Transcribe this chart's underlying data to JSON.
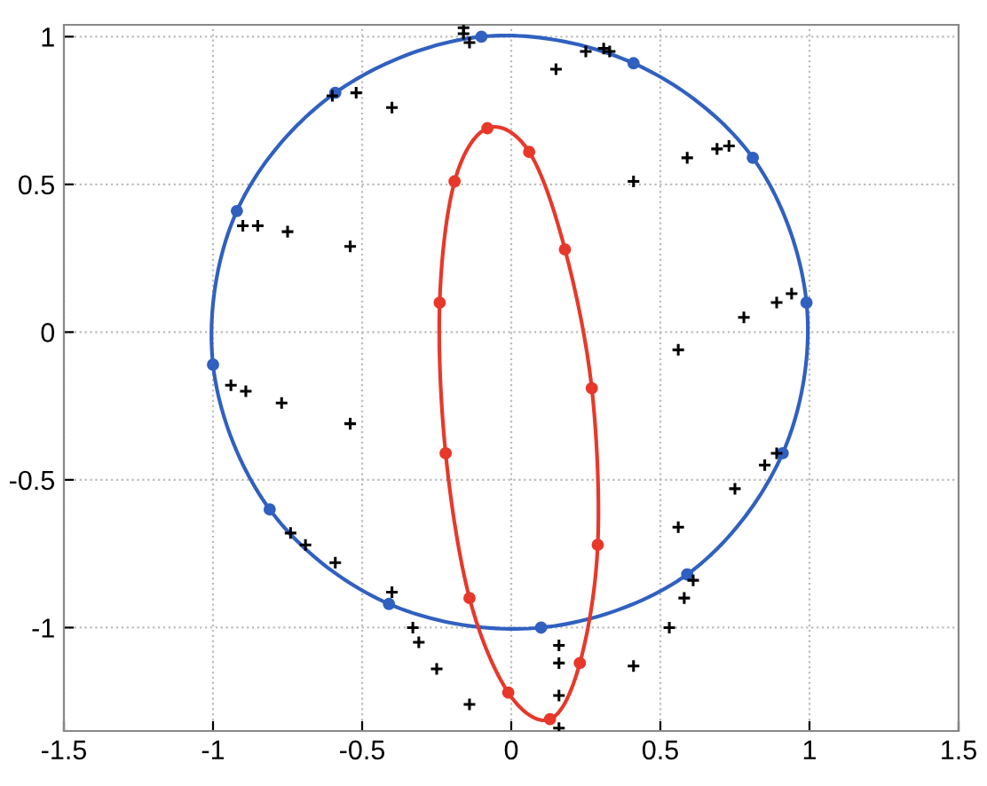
{
  "chart_data": {
    "type": "scatter",
    "xlim": [
      -1.5,
      1.5
    ],
    "ylim": [
      -1.35,
      1.04
    ],
    "xticks": [
      -1.5,
      -1,
      -0.5,
      0,
      0.5,
      1,
      1.5
    ],
    "yticks": [
      -1,
      -0.5,
      0,
      0.5,
      1
    ],
    "grid": true,
    "series": [
      {
        "color": "#3060c0",
        "marker": "circle",
        "line_style": "solid",
        "x": [
          0.99,
          0.81,
          0.41,
          -0.1,
          -0.59,
          -0.92,
          -1.0,
          -0.81,
          -0.41,
          0.1,
          0.59,
          0.91
        ],
        "values": [
          0.1,
          0.59,
          0.91,
          1.0,
          0.81,
          0.41,
          -0.11,
          -0.6,
          -0.92,
          -1.0,
          -0.82,
          -0.41
        ]
      },
      {
        "color": "#e8382a",
        "marker": "circle",
        "line_style": "solid",
        "x": [
          -0.08,
          0.06,
          0.18,
          0.27,
          0.29,
          0.23,
          0.13,
          -0.01,
          -0.14,
          -0.22,
          -0.24,
          -0.19
        ],
        "values": [
          0.69,
          0.61,
          0.28,
          -0.19,
          -0.72,
          -1.12,
          -1.31,
          -1.22,
          -0.9,
          -0.41,
          0.1,
          0.51
        ]
      },
      {
        "color": "#000000",
        "marker": "cross",
        "x": [
          -0.16,
          -0.16,
          -0.14,
          -0.6,
          -0.52,
          -0.4,
          -0.9,
          -0.85,
          -0.75,
          -0.54,
          -0.94,
          -0.89,
          -0.77,
          -0.54,
          -0.74,
          -0.69,
          -0.59,
          -0.4,
          -0.33,
          -0.31,
          -0.25,
          -0.14,
          0.15,
          0.25,
          0.31,
          0.33,
          0.59,
          0.69,
          0.73,
          0.41,
          0.94,
          0.89,
          0.78,
          0.56,
          0.89,
          0.85,
          0.75,
          0.56,
          0.61,
          0.58,
          0.53,
          0.41,
          0.16,
          0.16,
          0.16,
          0.16
        ],
        "values": [
          1.03,
          1.01,
          0.98,
          0.8,
          0.81,
          0.76,
          0.36,
          0.36,
          0.34,
          0.29,
          -0.18,
          -0.2,
          -0.24,
          -0.31,
          -0.68,
          -0.72,
          -0.78,
          -0.88,
          -1.0,
          -1.05,
          -1.14,
          -1.26,
          0.89,
          0.95,
          0.96,
          0.95,
          0.59,
          0.62,
          0.63,
          0.51,
          0.13,
          0.1,
          0.05,
          -0.06,
          -0.41,
          -0.45,
          -0.53,
          -0.66,
          -0.84,
          -0.9,
          -1.0,
          -1.13,
          -1.06,
          -1.12,
          -1.23,
          -1.34
        ]
      }
    ]
  }
}
